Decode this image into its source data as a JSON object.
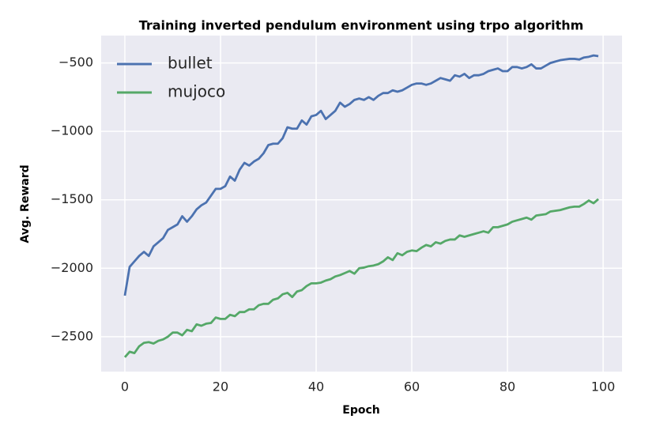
{
  "chart_data": {
    "type": "line",
    "title": "Training inverted pendulum environment using trpo algorithm",
    "x_label": "Epoch",
    "y_label": "Avg. Reward",
    "x": [
      0,
      1,
      2,
      3,
      4,
      5,
      6,
      7,
      8,
      9,
      10,
      11,
      12,
      13,
      14,
      15,
      16,
      17,
      18,
      19,
      20,
      21,
      22,
      23,
      24,
      25,
      26,
      27,
      28,
      29,
      30,
      31,
      32,
      33,
      34,
      35,
      36,
      37,
      38,
      39,
      40,
      41,
      42,
      43,
      44,
      45,
      46,
      47,
      48,
      49,
      50,
      51,
      52,
      53,
      54,
      55,
      56,
      57,
      58,
      59,
      60,
      61,
      62,
      63,
      64,
      65,
      66,
      67,
      68,
      69,
      70,
      71,
      72,
      73,
      74,
      75,
      76,
      77,
      78,
      79,
      80,
      81,
      82,
      83,
      84,
      85,
      86,
      87,
      88,
      89,
      90,
      91,
      92,
      93,
      94,
      95,
      96,
      97,
      98,
      99
    ],
    "series": [
      {
        "name": "bullet",
        "color": "#4c72b0",
        "values": [
          -2200,
          -1990,
          -1950,
          -1910,
          -1880,
          -1910,
          -1840,
          -1810,
          -1780,
          -1720,
          -1700,
          -1680,
          -1620,
          -1660,
          -1620,
          -1570,
          -1540,
          -1520,
          -1470,
          -1420,
          -1420,
          -1400,
          -1330,
          -1360,
          -1280,
          -1230,
          -1250,
          -1220,
          -1200,
          -1160,
          -1100,
          -1090,
          -1090,
          -1050,
          -970,
          -980,
          -980,
          -920,
          -950,
          -890,
          -880,
          -850,
          -910,
          -880,
          -850,
          -790,
          -820,
          -800,
          -770,
          -760,
          -770,
          -750,
          -770,
          -740,
          -720,
          -720,
          -700,
          -710,
          -700,
          -680,
          -660,
          -650,
          -650,
          -660,
          -650,
          -630,
          -610,
          -620,
          -630,
          -590,
          -600,
          -580,
          -610,
          -590,
          -590,
          -580,
          -560,
          -550,
          -540,
          -560,
          -560,
          -530,
          -530,
          -540,
          -530,
          -510,
          -540,
          -540,
          -520,
          -500,
          -490,
          -480,
          -475,
          -470,
          -470,
          -475,
          -460,
          -455,
          -445,
          -450
        ]
      },
      {
        "name": "mujoco",
        "color": "#55a868",
        "values": [
          -2650,
          -2610,
          -2620,
          -2570,
          -2545,
          -2540,
          -2550,
          -2530,
          -2520,
          -2500,
          -2470,
          -2470,
          -2490,
          -2450,
          -2460,
          -2410,
          -2420,
          -2405,
          -2400,
          -2360,
          -2370,
          -2370,
          -2340,
          -2350,
          -2320,
          -2320,
          -2300,
          -2300,
          -2270,
          -2260,
          -2260,
          -2230,
          -2220,
          -2190,
          -2180,
          -2210,
          -2170,
          -2160,
          -2130,
          -2110,
          -2110,
          -2105,
          -2090,
          -2080,
          -2060,
          -2050,
          -2035,
          -2020,
          -2040,
          -2000,
          -1995,
          -1985,
          -1980,
          -1970,
          -1950,
          -1920,
          -1940,
          -1890,
          -1905,
          -1880,
          -1870,
          -1875,
          -1850,
          -1830,
          -1840,
          -1810,
          -1820,
          -1800,
          -1790,
          -1790,
          -1760,
          -1770,
          -1760,
          -1750,
          -1740,
          -1730,
          -1740,
          -1700,
          -1700,
          -1690,
          -1680,
          -1660,
          -1650,
          -1640,
          -1630,
          -1645,
          -1615,
          -1610,
          -1605,
          -1585,
          -1580,
          -1575,
          -1565,
          -1555,
          -1550,
          -1550,
          -1530,
          -1505,
          -1525,
          -1495
        ]
      }
    ],
    "xlim": [
      -4.95,
      103.95
    ],
    "ylim": [
      -2755,
      -300
    ],
    "xticks": [
      0,
      20,
      40,
      60,
      80,
      100
    ],
    "yticks": [
      {
        "value": -2500,
        "label": "−2500"
      },
      {
        "value": -2000,
        "label": "−2000"
      },
      {
        "value": -1500,
        "label": "−1500"
      },
      {
        "value": -1000,
        "label": "−1000"
      },
      {
        "value": -500,
        "label": "−500"
      }
    ],
    "grid": true,
    "legend": "upper left"
  }
}
